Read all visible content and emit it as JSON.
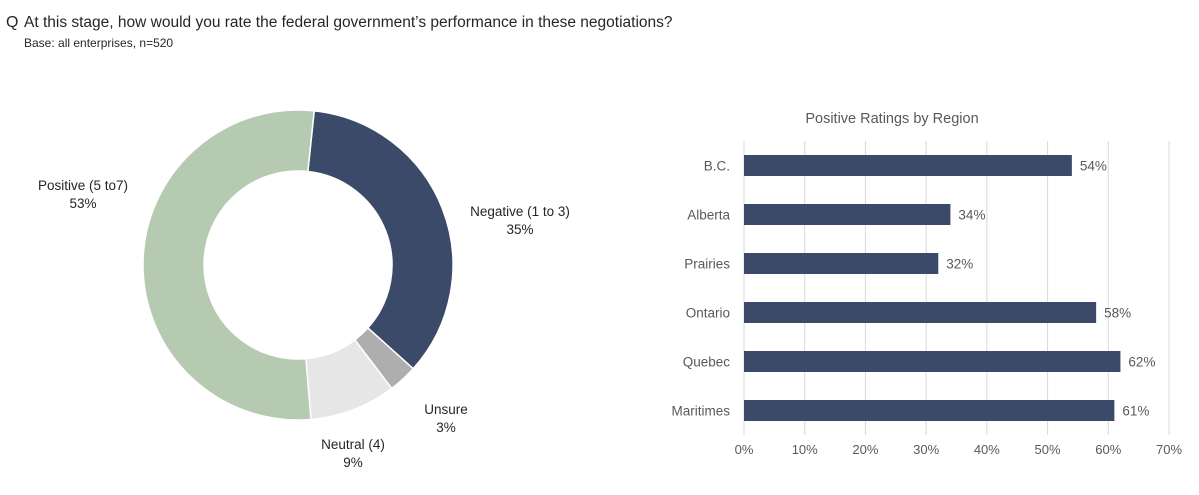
{
  "header": {
    "q_mark": "Q",
    "question": "At this stage, how would you rate the federal government’s performance in these negotiations?",
    "base": "Base: all enterprises,  n=520"
  },
  "chart_data": [
    {
      "type": "pie",
      "subtype": "donut",
      "title": "",
      "slices": [
        {
          "label": "Negative (1 to 3)",
          "value": 35,
          "value_label": "35%",
          "color": "#3a4a68"
        },
        {
          "label": "Unsure",
          "value": 3,
          "value_label": "3%",
          "color": "#aeaeae"
        },
        {
          "label": "Neutral (4)",
          "value": 9,
          "value_label": "9%",
          "color": "#e6e6e6"
        },
        {
          "label": "Positive (5 to7)",
          "value": 53,
          "value_label": "53%",
          "color": "#b5cab0"
        }
      ],
      "legend": "none"
    },
    {
      "type": "bar",
      "orientation": "horizontal",
      "title": "Positive Ratings by Region",
      "categories": [
        "B.C.",
        "Alberta",
        "Prairies",
        "Ontario",
        "Quebec",
        "Maritimes"
      ],
      "values": [
        54,
        34,
        32,
        58,
        62,
        61
      ],
      "value_labels": [
        "54%",
        "34%",
        "32%",
        "58%",
        "62%",
        "61%"
      ],
      "xlim": [
        0,
        70
      ],
      "ticks": [
        0,
        10,
        20,
        30,
        40,
        50,
        60,
        70
      ],
      "tick_labels": [
        "0%",
        "10%",
        "20%",
        "30%",
        "40%",
        "50%",
        "60%",
        "70%"
      ],
      "grid": "vertical",
      "bar_color": "#3a4a68",
      "legend": "none"
    }
  ]
}
